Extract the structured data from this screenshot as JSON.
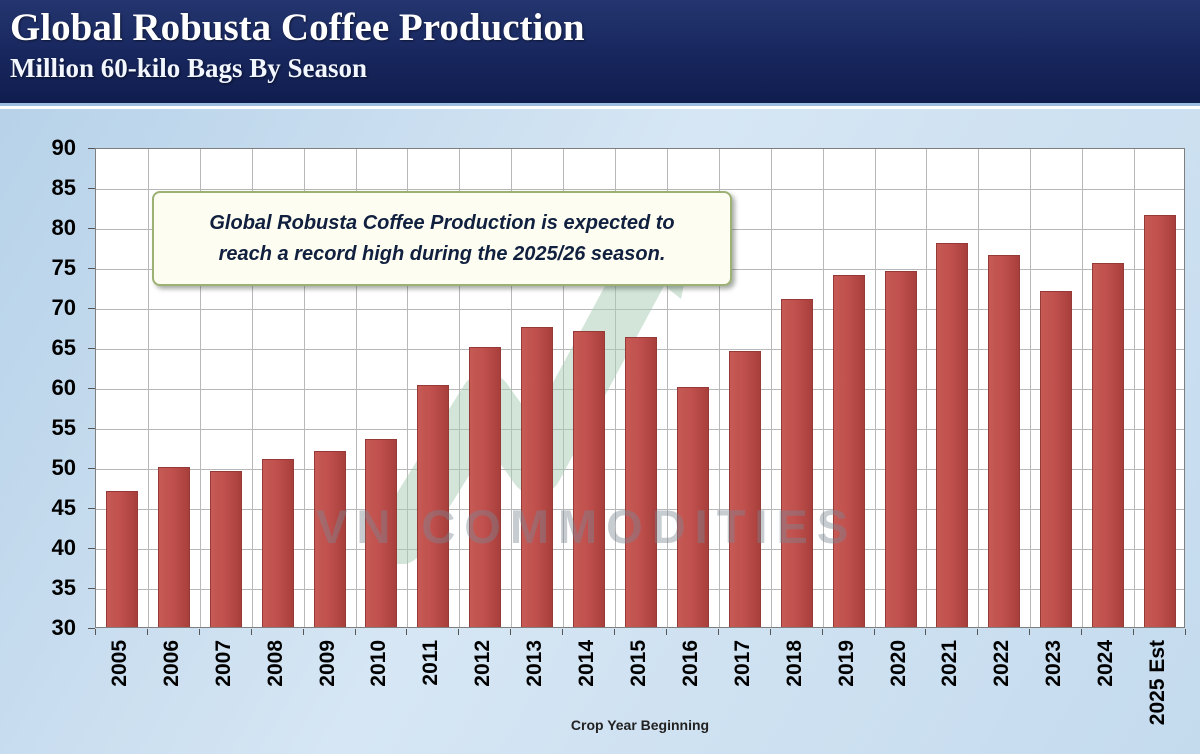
{
  "header": {
    "title": "Global Robusta Coffee Production",
    "subtitle": "Million 60-kilo Bags By Season"
  },
  "annotation": {
    "line1": "Global Robusta Coffee Production is expected to",
    "line2": "reach a record high during the 2025/26 season."
  },
  "watermark": "VN COMMODITIES",
  "colors": {
    "header_bg": "#17265d",
    "bar": "#c0504d",
    "plot_bg": "#ffffff",
    "region_bg": "#c4dbee",
    "annotation_border": "#9db174",
    "arrow_watermark": "#a9cdb5"
  },
  "chart_data": {
    "type": "bar",
    "title": "Global Robusta Coffee Production",
    "subtitle": "Million 60-kilo Bags By Season",
    "xlabel": "Crop Year Beginning",
    "ylabel": "",
    "grid": true,
    "legend": "none",
    "ylim": [
      30,
      90
    ],
    "yticks": [
      30,
      35,
      40,
      45,
      50,
      55,
      60,
      65,
      70,
      75,
      80,
      85,
      90
    ],
    "categories": [
      "2005",
      "2006",
      "2007",
      "2008",
      "2009",
      "2010",
      "2011",
      "2012",
      "2013",
      "2014",
      "2015",
      "2016",
      "2017",
      "2018",
      "2019",
      "2020",
      "2021",
      "2022",
      "2023",
      "2024",
      "2025 Est"
    ],
    "values": [
      47,
      50,
      49.5,
      51,
      52,
      53.5,
      60.3,
      65,
      67.5,
      67,
      66.3,
      60,
      64.5,
      71,
      74,
      74.5,
      78,
      76.5,
      72,
      75.5,
      81.5
    ]
  }
}
